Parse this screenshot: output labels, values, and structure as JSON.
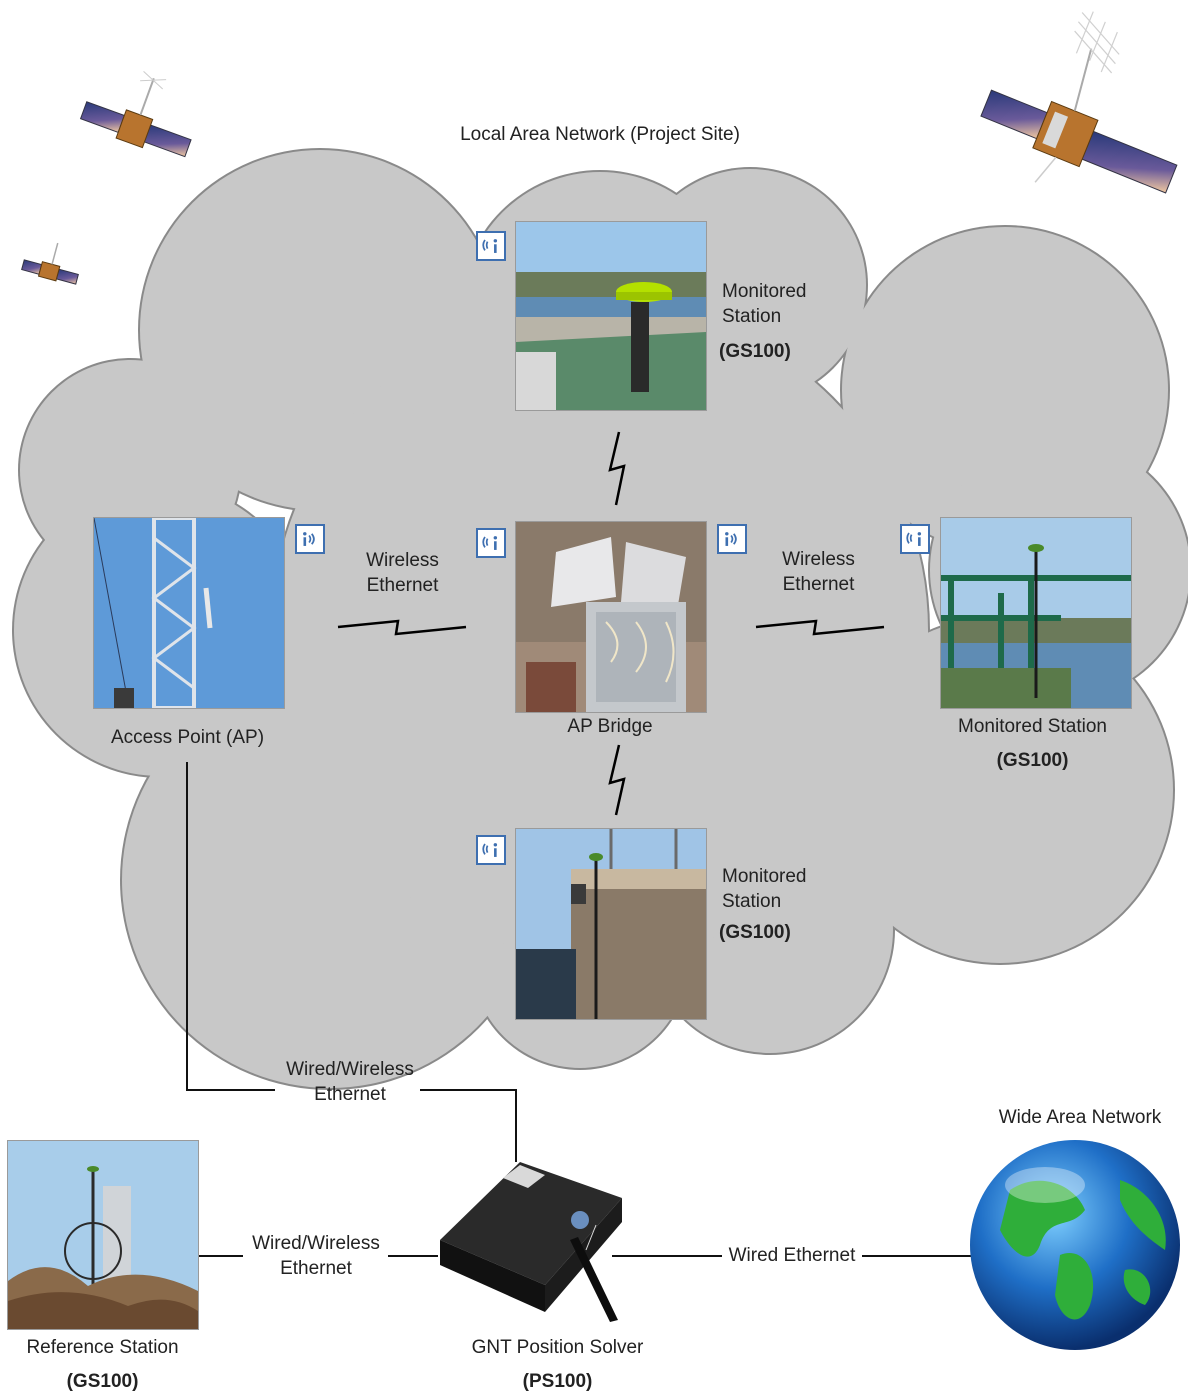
{
  "cloud": {
    "title": "Local Area Network (Project Site)",
    "fill": "#c8c8c8",
    "stroke": "#8a8a8a"
  },
  "nodes": {
    "monitored_top": {
      "line1": "Monitored",
      "line2": "Station",
      "model": "(GS100)"
    },
    "access_point": {
      "label": "Access Point (AP)"
    },
    "ap_bridge": {
      "label": "AP Bridge"
    },
    "monitored_right": {
      "line1": "Monitored Station",
      "model": "(GS100)"
    },
    "monitored_bottom": {
      "line1": "Monitored",
      "line2": "Station",
      "model": "(GS100)"
    },
    "reference_station": {
      "line1": "Reference Station",
      "model": "(GS100)"
    },
    "position_solver": {
      "line1": "GNT Position Solver",
      "model": "(PS100)"
    },
    "wan": {
      "label": "Wide Area Network"
    }
  },
  "links": {
    "ap_to_bridge": {
      "line1": "Wireless",
      "line2": "Ethernet"
    },
    "bridge_to_right": {
      "line1": "Wireless",
      "line2": "Ethernet"
    },
    "ap_to_solver": {
      "line1": "Wired/Wireless",
      "line2": "Ethernet"
    },
    "reference_to_solver": {
      "line1": "Wired/Wireless",
      "line2": "Ethernet"
    },
    "solver_to_wan": {
      "label": "Wired Ethernet"
    }
  },
  "icons": {
    "wireless_info": "wifi-info-icon",
    "satellite": "satellite-icon",
    "globe": "globe-icon",
    "lightning_link": "lightning-link-icon"
  },
  "colors": {
    "icon_blue": "#3e6fb0",
    "sky": "#6a9fd8",
    "line": "#111111"
  }
}
